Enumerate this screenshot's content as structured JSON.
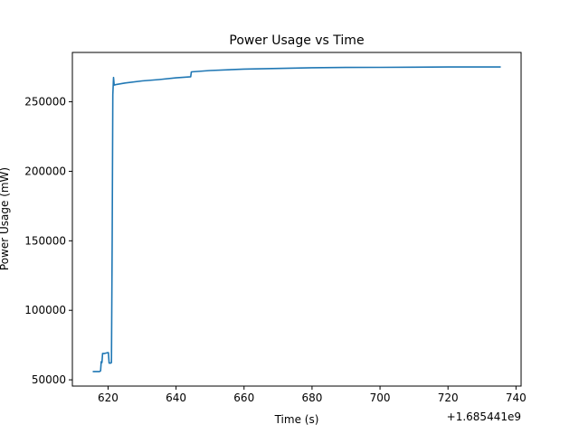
{
  "chart_data": {
    "type": "line",
    "title": "Power Usage vs Time",
    "xlabel": "Time (s)",
    "ylabel": "Power Usage (mW)",
    "x_offset_label": "+1.685441e9",
    "xlim": [
      609.5,
      741.5
    ],
    "ylim": [
      45500,
      285500
    ],
    "xticks": [
      620,
      640,
      660,
      680,
      700,
      720,
      740
    ],
    "yticks": [
      50000,
      100000,
      150000,
      200000,
      250000
    ],
    "xtick_labels": [
      "620",
      "640",
      "660",
      "680",
      "700",
      "720",
      "740"
    ],
    "ytick_labels": [
      "50000",
      "100000",
      "150000",
      "200000",
      "250000"
    ],
    "grid": false,
    "series": [
      {
        "color": "#1f77b4",
        "points": [
          [
            615.5,
            56000
          ],
          [
            617.5,
            56000
          ],
          [
            617.8,
            56500
          ],
          [
            618.0,
            63000
          ],
          [
            618.2,
            62500
          ],
          [
            618.4,
            69000
          ],
          [
            619.0,
            69000
          ],
          [
            619.8,
            69500
          ],
          [
            620.1,
            69500
          ],
          [
            620.3,
            62000
          ],
          [
            620.8,
            62000
          ],
          [
            621.0,
            62500
          ],
          [
            621.2,
            150000
          ],
          [
            621.4,
            255000
          ],
          [
            621.6,
            267500
          ],
          [
            621.8,
            262000
          ],
          [
            622.5,
            262500
          ],
          [
            625,
            263500
          ],
          [
            630,
            265000
          ],
          [
            635,
            266000
          ],
          [
            640,
            267200
          ],
          [
            644.3,
            268000
          ],
          [
            644.5,
            271500
          ],
          [
            650,
            272500
          ],
          [
            660,
            273500
          ],
          [
            670,
            274000
          ],
          [
            680,
            274500
          ],
          [
            690,
            274700
          ],
          [
            700,
            274800
          ],
          [
            710,
            274900
          ],
          [
            720,
            275000
          ],
          [
            730,
            275000
          ],
          [
            735.5,
            275000
          ]
        ]
      }
    ]
  }
}
